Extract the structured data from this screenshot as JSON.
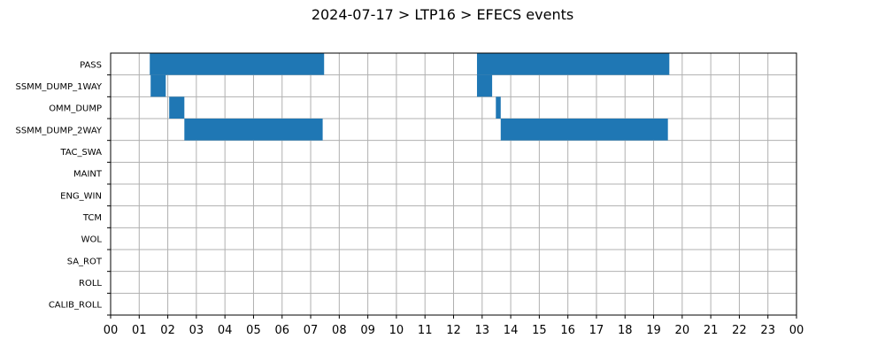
{
  "chart_data": {
    "type": "bar",
    "orientation": "horizontal-timeline",
    "title": "2024-07-17 > LTP16 > EFECS events",
    "xlabel": "",
    "ylabel": "",
    "xlim": [
      0,
      24
    ],
    "grid": true,
    "x_ticks": [
      "00",
      "01",
      "02",
      "03",
      "04",
      "05",
      "06",
      "07",
      "08",
      "09",
      "10",
      "11",
      "12",
      "13",
      "14",
      "15",
      "16",
      "17",
      "18",
      "19",
      "20",
      "21",
      "22",
      "23",
      "00"
    ],
    "categories": [
      "PASS",
      "SSMM_DUMP_1WAY",
      "OMM_DUMP",
      "SSMM_DUMP_2WAY",
      "TAC_SWA",
      "MAINT",
      "ENG_WIN",
      "TCM",
      "WOL",
      "SA_ROT",
      "ROLL",
      "CALIB_ROLL"
    ],
    "color": "#1f77b4",
    "events": [
      {
        "category": "PASS",
        "start": 1.37,
        "end": 7.47
      },
      {
        "category": "PASS",
        "start": 12.82,
        "end": 19.55
      },
      {
        "category": "SSMM_DUMP_1WAY",
        "start": 1.4,
        "end": 1.93
      },
      {
        "category": "SSMM_DUMP_1WAY",
        "start": 12.82,
        "end": 13.35
      },
      {
        "category": "OMM_DUMP",
        "start": 2.05,
        "end": 2.58
      },
      {
        "category": "OMM_DUMP",
        "start": 13.48,
        "end": 13.65
      },
      {
        "category": "SSMM_DUMP_2WAY",
        "start": 2.58,
        "end": 7.42
      },
      {
        "category": "SSMM_DUMP_2WAY",
        "start": 13.65,
        "end": 19.5
      }
    ]
  }
}
